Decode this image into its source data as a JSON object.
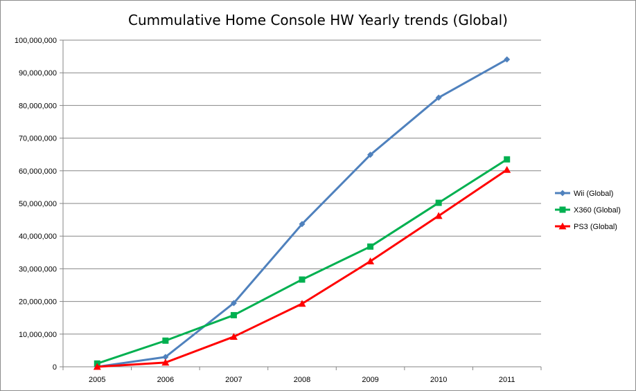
{
  "chart_data": {
    "type": "line",
    "title": "Cummulative Home Console HW Yearly trends (Global)",
    "xlabel": "",
    "ylabel": "",
    "categories": [
      "2005",
      "2006",
      "2007",
      "2008",
      "2009",
      "2010",
      "2011"
    ],
    "y_ticks": [
      "0",
      "10,000,000",
      "20,000,000",
      "30,000,000",
      "40,000,000",
      "50,000,000",
      "60,000,000",
      "70,000,000",
      "80,000,000",
      "90,000,000",
      "100,000,000"
    ],
    "ylim": [
      0,
      100000000
    ],
    "grid": "horizontal",
    "legend": "right",
    "series": [
      {
        "name": "Wii (Global)",
        "color": "#4f81bd",
        "marker": "diamond",
        "values": [
          0,
          3000000,
          19500000,
          43700000,
          64900000,
          82400000,
          94100000
        ]
      },
      {
        "name": "X360 (Global)",
        "color": "#00b050",
        "marker": "square",
        "values": [
          1000000,
          8000000,
          15800000,
          26700000,
          36800000,
          50200000,
          63500000
        ]
      },
      {
        "name": "PS3 (Global)",
        "color": "#ff0000",
        "marker": "triangle",
        "values": [
          0,
          1300000,
          9200000,
          19300000,
          32300000,
          46200000,
          60300000
        ]
      }
    ]
  }
}
